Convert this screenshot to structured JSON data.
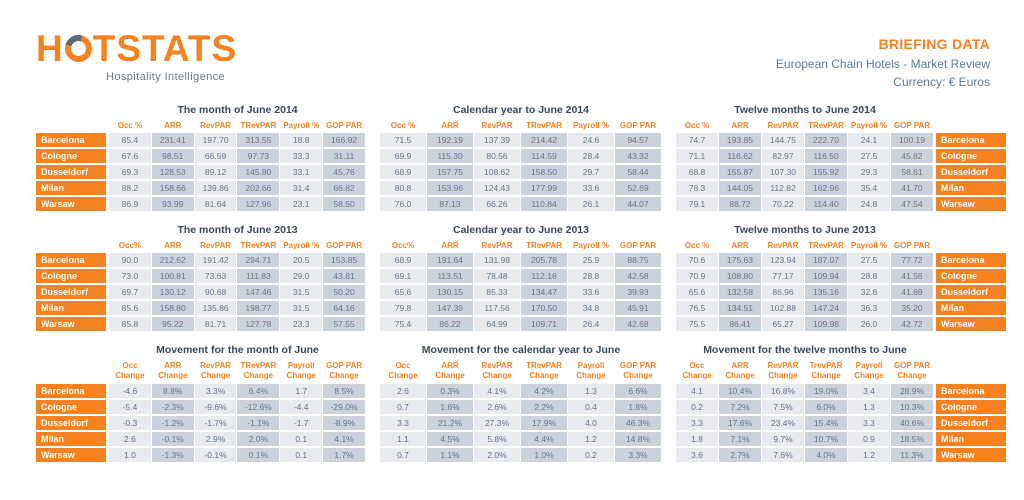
{
  "header": {
    "logo_prefix": "H",
    "logo_suffix": "TSTATS",
    "tagline": "Hospitality Intelligence",
    "title": "BRIEFING DATA",
    "subtitle": "European Chain Hotels - Market Review",
    "currency": "Currency: € Euros"
  },
  "colors": {
    "orange": "#F58220",
    "title_navy": "#39475A",
    "subtitle_blue": "#5C7A99",
    "cell_light": "#E9EAEE",
    "cell_dark": "#CBD2DC",
    "data_text": "#68758A"
  },
  "cities": [
    "Barcelona",
    "Cologne",
    "Dusseldorf",
    "Milan",
    "Warsaw"
  ],
  "tables": [
    {
      "title": "The month of June 2014",
      "label_side": "left",
      "columns": [
        "Occ %",
        "ARR",
        "RevPAR",
        "TRevPAR",
        "Payroll %",
        "GOP PAR"
      ],
      "rows": [
        [
          "85.4",
          "231.41",
          "197.70",
          "313.55",
          "18.8",
          "166.92"
        ],
        [
          "67.6",
          "98.51",
          "66.59",
          "97.73",
          "33.3",
          "31.11"
        ],
        [
          "69.3",
          "128.53",
          "89.12",
          "145.80",
          "33.1",
          "45.76"
        ],
        [
          "88.2",
          "158.66",
          "139.86",
          "202.66",
          "31.4",
          "66.82"
        ],
        [
          "86.9",
          "93.99",
          "81.64",
          "127.96",
          "23.1",
          "58.50"
        ]
      ]
    },
    {
      "title": "Calendar year to June 2014",
      "label_side": "none",
      "columns": [
        "Occ %",
        "ARR",
        "RevPAR",
        "TRevPAR",
        "Payroll %",
        "GOP PAR"
      ],
      "rows": [
        [
          "71.5",
          "192.19",
          "137.39",
          "214.42",
          "24.6",
          "94.57"
        ],
        [
          "69.9",
          "115.30",
          "80.56",
          "114.59",
          "28.4",
          "43.32"
        ],
        [
          "68.9",
          "157.75",
          "108.62",
          "158.50",
          "29.7",
          "58.44"
        ],
        [
          "80.8",
          "153.96",
          "124.43",
          "177.99",
          "33.6",
          "52.69"
        ],
        [
          "76.0",
          "87.13",
          "66.26",
          "110.84",
          "26.1",
          "44.07"
        ]
      ]
    },
    {
      "title": "Twelve months to June 2014",
      "label_side": "right",
      "columns": [
        "Occ %",
        "ARR",
        "RevPAR",
        "TRevPAR",
        "Payroll %",
        "GOP PAR"
      ],
      "rows": [
        [
          "74.7",
          "193.85",
          "144.75",
          "222.70",
          "24.1",
          "100.19"
        ],
        [
          "71.1",
          "116.62",
          "82.97",
          "116.50",
          "27.5",
          "45.82"
        ],
        [
          "68.8",
          "155.87",
          "107.30",
          "155.92",
          "29.3",
          "58.61"
        ],
        [
          "78.3",
          "144.05",
          "112.82",
          "162.96",
          "35.4",
          "41.70"
        ],
        [
          "79.1",
          "88.72",
          "70.22",
          "114.40",
          "24.8",
          "47.54"
        ]
      ]
    },
    {
      "title": "The month of June 2013",
      "label_side": "left",
      "columns": [
        "Occ%",
        "ARR",
        "RevPAR",
        "TRevPAR",
        "Payroll %",
        "GOP PAR"
      ],
      "rows": [
        [
          "90.0",
          "212.62",
          "191.42",
          "294.71",
          "20.5",
          "153.85"
        ],
        [
          "73.0",
          "100.81",
          "73.63",
          "111.83",
          "29.0",
          "43.81"
        ],
        [
          "69.7",
          "130.12",
          "90.68",
          "147.46",
          "31.5",
          "50.20"
        ],
        [
          "85.6",
          "158.80",
          "135.86",
          "198.77",
          "31.5",
          "64.16"
        ],
        [
          "85.8",
          "95.22",
          "81.71",
          "127.78",
          "23.3",
          "57.55"
        ]
      ]
    },
    {
      "title": "Calendar year to June 2013",
      "label_side": "none",
      "columns": [
        "Occ%",
        "ARR",
        "RevPAR",
        "TRevPAR",
        "Payroll %",
        "GOP PAR"
      ],
      "rows": [
        [
          "68.9",
          "191.64",
          "131.98",
          "205.78",
          "25.9",
          "88.75"
        ],
        [
          "69.1",
          "113.51",
          "78.48",
          "112.16",
          "28.8",
          "42.58"
        ],
        [
          "65.6",
          "130.15",
          "85.33",
          "134.47",
          "33.6",
          "39.93"
        ],
        [
          "79.8",
          "147.39",
          "117.56",
          "170.50",
          "34.8",
          "45.91"
        ],
        [
          "75.4",
          "86.22",
          "64.99",
          "109.71",
          "26.4",
          "42.68"
        ]
      ]
    },
    {
      "title": "Twelve months to June 2013",
      "label_side": "right",
      "columns": [
        "Occ %",
        "ARR",
        "RevPAR",
        "TRevPAR",
        "Payroll %",
        "GOP PAR"
      ],
      "rows": [
        [
          "70.6",
          "175.63",
          "123.94",
          "187.07",
          "27.5",
          "77.72"
        ],
        [
          "70.9",
          "108.80",
          "77.17",
          "109.94",
          "28.8",
          "41.56"
        ],
        [
          "65.6",
          "132.58",
          "86.96",
          "135.16",
          "32.6",
          "41.69"
        ],
        [
          "76.5",
          "134.51",
          "102.88",
          "147.24",
          "36.3",
          "35.20"
        ],
        [
          "75.5",
          "86.41",
          "65.27",
          "109.98",
          "26.0",
          "42.72"
        ]
      ]
    },
    {
      "title": "Movement for the month of June",
      "label_side": "left",
      "columns": [
        "Occ\nChange",
        "ARR\nChange",
        "RevPAR\nChange",
        "TRevPAR\nChange",
        "Payroll\nChange",
        "GOP PAR\nChange"
      ],
      "rows": [
        [
          "-4.6",
          "8.8%",
          "3.3%",
          "6.4%",
          "1.7",
          "8.5%"
        ],
        [
          "-5.4",
          "-2.3%",
          "-9.6%",
          "-12.6%",
          "-4.4",
          "-29.0%"
        ],
        [
          "-0.3",
          "-1.2%",
          "-1.7%",
          "-1.1%",
          "-1.7",
          "-8.9%"
        ],
        [
          "2.6",
          "-0.1%",
          "2.9%",
          "2.0%",
          "0.1",
          "4.1%"
        ],
        [
          "1.0",
          "-1.3%",
          "-0.1%",
          "0.1%",
          "0.1",
          "1.7%"
        ]
      ]
    },
    {
      "title": "Movement for the calendar year to June",
      "label_side": "none",
      "columns": [
        "Occ\nChange",
        "ARR\nChange",
        "RevPAR\nChange",
        "TRevPAR\nChange",
        "Payroll\nChange",
        "GOP PAR\nChange"
      ],
      "rows": [
        [
          "2.6",
          "0.3%",
          "4.1%",
          "4.2%",
          "1.3",
          "6.6%"
        ],
        [
          "0.7",
          "1.6%",
          "2.6%",
          "2.2%",
          "0.4",
          "1.8%"
        ],
        [
          "3.3",
          "21.2%",
          "27.3%",
          "17.9%",
          "4.0",
          "46.3%"
        ],
        [
          "1.1",
          "4.5%",
          "5.8%",
          "4.4%",
          "1.2",
          "14.8%"
        ],
        [
          "0.7",
          "1.1%",
          "2.0%",
          "1.0%",
          "0.2",
          "3.3%"
        ]
      ]
    },
    {
      "title": "Movement for the twelve months to June",
      "label_side": "right",
      "columns": [
        "Occ Change",
        "ARR\nChange",
        "RevPAR\nChange",
        "TrevPAR\nChange",
        "Payroll\nChange",
        "GOP PAR\nChange"
      ],
      "rows": [
        [
          "4.1",
          "10.4%",
          "16.8%",
          "19.0%",
          "3.4",
          "28.9%"
        ],
        [
          "0.2",
          "7.2%",
          "7.5%",
          "6.0%",
          "1.3",
          "10.3%"
        ],
        [
          "3.3",
          "17.6%",
          "23.4%",
          "15.4%",
          "3.3",
          "40.6%"
        ],
        [
          "1.8",
          "7.1%",
          "9.7%",
          "10.7%",
          "0.9",
          "18.5%"
        ],
        [
          "3.6",
          "2.7%",
          "7.6%",
          "4.0%",
          "1.2",
          "11.3%"
        ]
      ]
    }
  ]
}
